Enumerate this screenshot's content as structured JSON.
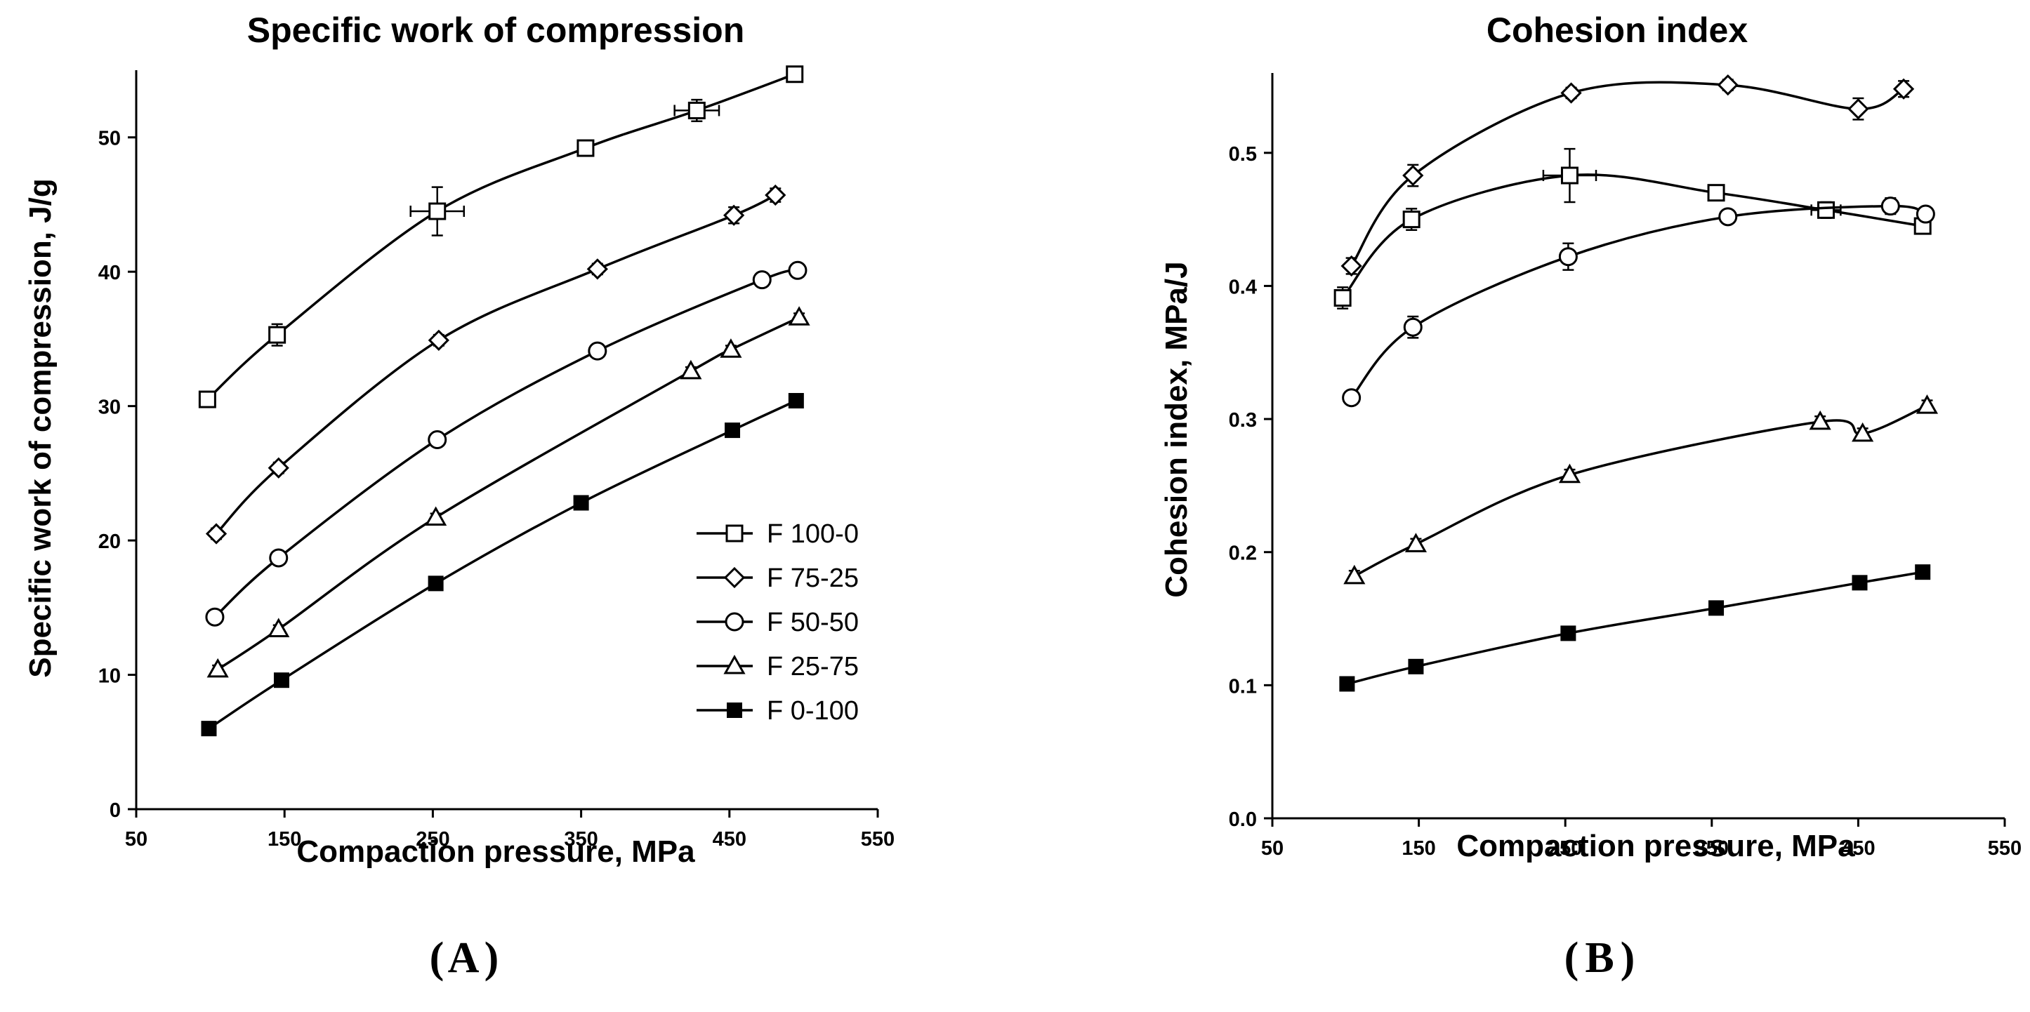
{
  "chart_data": [
    {
      "type": "line",
      "panel": "A",
      "title": "Specific work of compression",
      "xlabel": "Compaction pressure, MPa",
      "ylabel": "Specific work of compression, J/g",
      "xlim": [
        50,
        550
      ],
      "ylim": [
        0,
        55
      ],
      "xticks": [
        50,
        150,
        250,
        350,
        450,
        550
      ],
      "yticks": [
        0,
        10,
        20,
        30,
        40,
        50
      ],
      "legend_position": "bottom-right",
      "series": [
        {
          "name": "F 100-0",
          "marker": "square",
          "x": [
            98,
            145,
            253,
            353,
            428,
            494
          ],
          "y": [
            30.5,
            35.3,
            44.5,
            49.2,
            52.0,
            54.7
          ],
          "xerr": [
            0,
            0,
            18,
            0,
            15,
            0
          ],
          "yerr": [
            0.5,
            0.8,
            1.8,
            0.4,
            0.8,
            0.3
          ]
        },
        {
          "name": "F 75-25",
          "marker": "diamond",
          "x": [
            104,
            146,
            254,
            361,
            453,
            481
          ],
          "y": [
            20.5,
            25.4,
            34.9,
            40.2,
            44.2,
            45.7
          ],
          "xerr": [
            0,
            0,
            0,
            0,
            0,
            0
          ],
          "yerr": [
            0.4,
            0.4,
            0.4,
            0.4,
            0.6,
            0.5
          ]
        },
        {
          "name": "F 50-50",
          "marker": "circle",
          "x": [
            103,
            146,
            253,
            361,
            472,
            496
          ],
          "y": [
            14.3,
            18.7,
            27.5,
            34.1,
            39.4,
            40.1
          ],
          "xerr": [
            0,
            0,
            0,
            0,
            0,
            0
          ],
          "yerr": [
            0.3,
            0.3,
            0.5,
            0.4,
            0.4,
            0.3
          ]
        },
        {
          "name": "F 25-75",
          "marker": "triangle",
          "x": [
            105,
            146,
            252,
            424,
            451,
            497
          ],
          "y": [
            10.4,
            13.4,
            21.7,
            32.6,
            34.2,
            36.6
          ],
          "xerr": [
            0,
            0,
            0,
            0,
            0,
            0
          ],
          "yerr": [
            0.3,
            0.3,
            0.3,
            0.3,
            0.3,
            0.3
          ]
        },
        {
          "name": "F 0-100",
          "marker": "filled-square",
          "x": [
            99,
            148,
            252,
            350,
            452,
            495
          ],
          "y": [
            6.0,
            9.6,
            16.8,
            22.8,
            28.2,
            30.4
          ],
          "xerr": [
            0,
            0,
            0,
            0,
            0,
            0
          ],
          "yerr": [
            0.3,
            0.3,
            0.3,
            0.3,
            0.3,
            0.3
          ]
        }
      ]
    },
    {
      "type": "line",
      "panel": "B",
      "title": "Cohesion index",
      "xlabel": "Compaction pressure, MPa",
      "ylabel": "Cohesion index, MPa/J",
      "xlim": [
        50,
        550
      ],
      "ylim": [
        0,
        0.56
      ],
      "xticks": [
        50,
        150,
        250,
        350,
        450,
        550
      ],
      "yticks": [
        "0.0",
        "0.1",
        "0.2",
        "0.3",
        "0.4",
        "0.5"
      ],
      "series": [
        {
          "name": "F 100-0",
          "marker": "square",
          "x": [
            98,
            145,
            253,
            353,
            428,
            494
          ],
          "y": [
            0.391,
            0.45,
            0.483,
            0.47,
            0.457,
            0.445
          ],
          "xerr": [
            0,
            0,
            18,
            0,
            10,
            0
          ],
          "yerr": [
            0.008,
            0.008,
            0.02,
            0.004,
            0.006,
            0.004
          ]
        },
        {
          "name": "F 75-25",
          "marker": "diamond",
          "x": [
            104,
            146,
            254,
            361,
            450,
            481
          ],
          "y": [
            0.415,
            0.483,
            0.545,
            0.551,
            0.533,
            0.548
          ],
          "xerr": [
            0,
            0,
            0,
            0,
            0,
            0
          ],
          "yerr": [
            0.006,
            0.008,
            0.004,
            0.004,
            0.008,
            0.006
          ]
        },
        {
          "name": "F 50-50",
          "marker": "circle",
          "x": [
            104,
            146,
            252,
            361,
            472,
            496
          ],
          "y": [
            0.316,
            0.369,
            0.422,
            0.452,
            0.46,
            0.454
          ],
          "xerr": [
            0,
            0,
            0,
            0,
            0,
            0
          ],
          "yerr": [
            0.004,
            0.008,
            0.01,
            0.005,
            0.006,
            0.004
          ]
        },
        {
          "name": "F 25-75",
          "marker": "triangle",
          "x": [
            106,
            148,
            253,
            424,
            453,
            497
          ],
          "y": [
            0.182,
            0.206,
            0.258,
            0.298,
            0.289,
            0.31
          ],
          "xerr": [
            0,
            0,
            0,
            0,
            0,
            0
          ],
          "yerr": [
            0.004,
            0.004,
            0.004,
            0.004,
            0.004,
            0.004
          ]
        },
        {
          "name": "F 0-100",
          "marker": "filled-square",
          "x": [
            101,
            148,
            252,
            353,
            451,
            494
          ],
          "y": [
            0.101,
            0.114,
            0.139,
            0.158,
            0.177,
            0.185
          ],
          "xerr": [
            0,
            0,
            0,
            0,
            0,
            0
          ],
          "yerr": [
            0.003,
            0.003,
            0.003,
            0.003,
            0.003,
            0.003
          ]
        }
      ]
    }
  ]
}
